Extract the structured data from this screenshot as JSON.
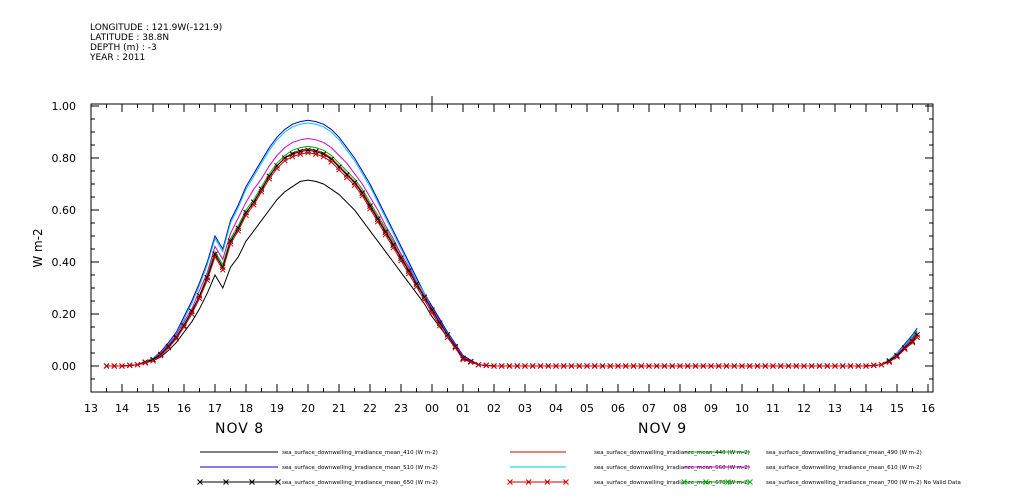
{
  "header": {
    "longitude": "LONGITUDE : 121.9W(-121.9)",
    "latitude": "LATITUDE : 38.8N",
    "depth": "DEPTH (m) : -3",
    "year": "YEAR : 2011"
  },
  "chart_data": {
    "type": "line",
    "ylabel": "W m-2",
    "ylim": [
      -0.1,
      1.0
    ],
    "yticks": [
      "1.00",
      "0.80",
      "0.60",
      "0.40",
      "0.20",
      "0.00"
    ],
    "xticks": [
      "13",
      "14",
      "15",
      "16",
      "17",
      "18",
      "19",
      "20",
      "21",
      "22",
      "23",
      "00",
      "01",
      "02",
      "03",
      "04",
      "05",
      "06",
      "07",
      "08",
      "09",
      "10",
      "11",
      "12",
      "13",
      "14",
      "15",
      "16"
    ],
    "date_labels": [
      "NOV  8",
      "NOV  9"
    ],
    "grid": false,
    "legend_position": "bottom",
    "x_hours_since_nov8_00": [
      13.5,
      14,
      14.5,
      15,
      15.25,
      15.5,
      15.75,
      16,
      16.25,
      16.5,
      16.75,
      17,
      17.25,
      17.5,
      17.75,
      18,
      18.25,
      18.5,
      18.75,
      19,
      19.25,
      19.5,
      19.75,
      20,
      20.25,
      20.5,
      20.75,
      21,
      21.25,
      21.5,
      21.75,
      22,
      22.25,
      22.5,
      22.75,
      23,
      23.25,
      23.5,
      23.75,
      24,
      24.25,
      24.5,
      24.75,
      25,
      25.5,
      26,
      27,
      28,
      29,
      30,
      31,
      32,
      33,
      34,
      35,
      36,
      37,
      38,
      38.5,
      38.75,
      39,
      39.25,
      39.5,
      39.65
    ],
    "series": [
      {
        "name": "sea_surface_downwelling_irradiance_mean_410 (W m-2)",
        "color": "#000000",
        "marker": "none",
        "values": [
          0,
          0,
          0.005,
          0.02,
          0.035,
          0.06,
          0.09,
          0.13,
          0.17,
          0.22,
          0.28,
          0.35,
          0.3,
          0.38,
          0.42,
          0.48,
          0.52,
          0.56,
          0.6,
          0.64,
          0.67,
          0.69,
          0.71,
          0.715,
          0.71,
          0.7,
          0.68,
          0.66,
          0.63,
          0.6,
          0.56,
          0.52,
          0.48,
          0.44,
          0.4,
          0.36,
          0.32,
          0.28,
          0.24,
          0.19,
          0.15,
          0.11,
          0.07,
          0.03,
          0.005,
          0,
          0,
          0,
          0,
          0,
          0,
          0,
          0,
          0,
          0,
          0,
          0,
          0,
          0.005,
          0.02,
          0.04,
          0.07,
          0.1,
          0.12
        ]
      },
      {
        "name": "sea_surface_downwelling_irradiance_mean_440 (W m-2)",
        "color": "#d00000",
        "marker": "none",
        "values": [
          0,
          0,
          0.005,
          0.025,
          0.045,
          0.075,
          0.11,
          0.16,
          0.21,
          0.27,
          0.34,
          0.43,
          0.38,
          0.48,
          0.53,
          0.59,
          0.63,
          0.68,
          0.73,
          0.77,
          0.8,
          0.82,
          0.83,
          0.835,
          0.83,
          0.82,
          0.8,
          0.77,
          0.74,
          0.71,
          0.67,
          0.62,
          0.57,
          0.52,
          0.47,
          0.42,
          0.37,
          0.32,
          0.27,
          0.22,
          0.17,
          0.12,
          0.08,
          0.035,
          0.005,
          0,
          0,
          0,
          0,
          0,
          0,
          0,
          0,
          0,
          0,
          0,
          0,
          0,
          0.005,
          0.02,
          0.045,
          0.075,
          0.1,
          0.125
        ]
      },
      {
        "name": "sea_surface_downwelling_irradiance_mean_490 (W m-2)",
        "color": "#00b000",
        "marker": "none",
        "values": [
          0,
          0,
          0.005,
          0.025,
          0.045,
          0.075,
          0.11,
          0.16,
          0.21,
          0.27,
          0.35,
          0.44,
          0.39,
          0.49,
          0.54,
          0.6,
          0.64,
          0.69,
          0.74,
          0.78,
          0.81,
          0.83,
          0.84,
          0.845,
          0.84,
          0.83,
          0.81,
          0.78,
          0.75,
          0.72,
          0.68,
          0.63,
          0.58,
          0.53,
          0.48,
          0.43,
          0.38,
          0.33,
          0.28,
          0.23,
          0.18,
          0.13,
          0.085,
          0.04,
          0.005,
          0,
          0,
          0,
          0,
          0,
          0,
          0,
          0,
          0,
          0,
          0,
          0,
          0,
          0.005,
          0.025,
          0.05,
          0.08,
          0.11,
          0.135
        ]
      },
      {
        "name": "sea_surface_downwelling_irradiance_mean_510 (W m-2)",
        "color": "#0000cc",
        "marker": "none",
        "values": [
          0,
          0,
          0.005,
          0.03,
          0.055,
          0.09,
          0.13,
          0.19,
          0.25,
          0.32,
          0.4,
          0.5,
          0.45,
          0.56,
          0.62,
          0.69,
          0.74,
          0.79,
          0.84,
          0.88,
          0.91,
          0.93,
          0.94,
          0.945,
          0.94,
          0.93,
          0.91,
          0.88,
          0.84,
          0.8,
          0.75,
          0.7,
          0.64,
          0.58,
          0.52,
          0.46,
          0.4,
          0.34,
          0.28,
          0.23,
          0.18,
          0.13,
          0.085,
          0.04,
          0.005,
          0,
          0,
          0,
          0,
          0,
          0,
          0,
          0,
          0,
          0,
          0,
          0,
          0,
          0.005,
          0.025,
          0.05,
          0.085,
          0.12,
          0.145
        ]
      },
      {
        "name": "sea_surface_downwelling_irradiance_mean_560 (W m-2)",
        "color": "#00c8d8",
        "marker": "none",
        "values": [
          0,
          0,
          0.005,
          0.03,
          0.05,
          0.085,
          0.125,
          0.18,
          0.24,
          0.31,
          0.39,
          0.49,
          0.44,
          0.55,
          0.61,
          0.68,
          0.73,
          0.78,
          0.83,
          0.87,
          0.9,
          0.92,
          0.93,
          0.935,
          0.93,
          0.92,
          0.9,
          0.87,
          0.83,
          0.79,
          0.74,
          0.69,
          0.63,
          0.57,
          0.51,
          0.45,
          0.39,
          0.33,
          0.28,
          0.22,
          0.17,
          0.125,
          0.08,
          0.035,
          0.005,
          0,
          0,
          0,
          0,
          0,
          0,
          0,
          0,
          0,
          0,
          0,
          0,
          0,
          0.005,
          0.025,
          0.05,
          0.08,
          0.115,
          0.14
        ]
      },
      {
        "name": "sea_surface_downwelling_irradiance_mean_610 (W m-2)",
        "color": "#d000d0",
        "marker": "none",
        "values": [
          0,
          0,
          0.005,
          0.025,
          0.05,
          0.08,
          0.12,
          0.17,
          0.22,
          0.29,
          0.36,
          0.46,
          0.41,
          0.51,
          0.57,
          0.63,
          0.68,
          0.72,
          0.77,
          0.81,
          0.84,
          0.86,
          0.87,
          0.875,
          0.87,
          0.86,
          0.84,
          0.81,
          0.78,
          0.74,
          0.7,
          0.65,
          0.6,
          0.54,
          0.49,
          0.43,
          0.38,
          0.32,
          0.27,
          0.22,
          0.17,
          0.12,
          0.08,
          0.035,
          0.005,
          0,
          0,
          0,
          0,
          0,
          0,
          0,
          0,
          0,
          0,
          0,
          0,
          0,
          0.005,
          0.02,
          0.045,
          0.075,
          0.105,
          0.13
        ]
      },
      {
        "name": "sea_surface_downwelling_irradiance_mean_650 (W m-2)",
        "color": "#000000",
        "marker": "x",
        "values": [
          0,
          0,
          0.005,
          0.025,
          0.045,
          0.075,
          0.11,
          0.155,
          0.21,
          0.27,
          0.34,
          0.43,
          0.38,
          0.48,
          0.53,
          0.59,
          0.63,
          0.68,
          0.73,
          0.77,
          0.8,
          0.815,
          0.825,
          0.83,
          0.825,
          0.815,
          0.795,
          0.765,
          0.735,
          0.705,
          0.665,
          0.615,
          0.565,
          0.515,
          0.465,
          0.415,
          0.365,
          0.315,
          0.265,
          0.215,
          0.165,
          0.12,
          0.075,
          0.03,
          0.005,
          0,
          0,
          0,
          0,
          0,
          0,
          0,
          0,
          0,
          0,
          0,
          0,
          0,
          0.005,
          0.02,
          0.04,
          0.07,
          0.095,
          0.12
        ]
      },
      {
        "name": "sea_surface_downwelling_irradiance_mean_670 (W m-2)",
        "color": "#d00000",
        "marker": "x",
        "values": [
          0,
          0,
          0.005,
          0.02,
          0.04,
          0.07,
          0.105,
          0.15,
          0.2,
          0.26,
          0.33,
          0.42,
          0.37,
          0.47,
          0.52,
          0.58,
          0.62,
          0.67,
          0.72,
          0.76,
          0.79,
          0.805,
          0.815,
          0.82,
          0.815,
          0.805,
          0.785,
          0.755,
          0.725,
          0.695,
          0.655,
          0.605,
          0.555,
          0.505,
          0.455,
          0.405,
          0.355,
          0.305,
          0.255,
          0.205,
          0.155,
          0.11,
          0.07,
          0.025,
          0.005,
          0,
          0,
          0,
          0,
          0,
          0,
          0,
          0,
          0,
          0,
          0,
          0,
          0,
          0.005,
          0.015,
          0.035,
          0.065,
          0.09,
          0.11
        ]
      }
    ],
    "no_data_series": {
      "name": "sea_surface_downwelling_irradiance_mean_700 (W m-2) No Valid Data",
      "color": "#00b000",
      "marker": "x"
    },
    "legend_order": [
      0,
      1,
      2,
      3,
      4,
      5,
      6,
      7,
      8
    ]
  }
}
